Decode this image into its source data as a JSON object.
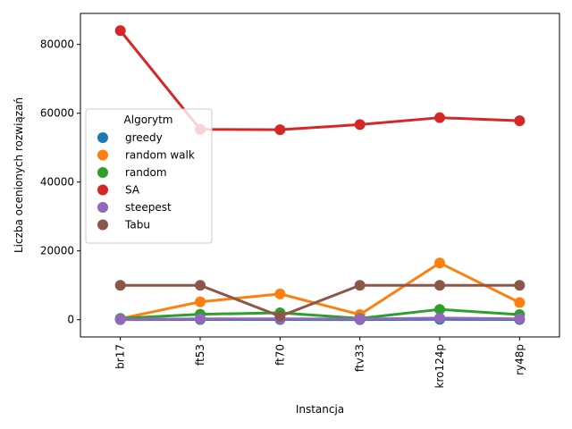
{
  "chart_data": {
    "type": "line",
    "xlabel": "Instancja",
    "ylabel": "Liczba ocenionych rozwiązań",
    "categories": [
      "br17",
      "ft53",
      "ft70",
      "ftv33",
      "kro124p",
      "ry48p"
    ],
    "ylim": [
      -5000,
      89000
    ],
    "yticks": [
      0,
      20000,
      40000,
      60000,
      80000
    ],
    "grid": false,
    "legend": {
      "title": "Algorytm",
      "placement": "center-left"
    },
    "series": [
      {
        "name": "greedy",
        "color": "#1f77b4",
        "values": [
          17,
          53,
          70,
          33,
          124,
          48
        ]
      },
      {
        "name": "random walk",
        "color": "#ff7f0e",
        "values": [
          300,
          5200,
          7500,
          1500,
          16500,
          5000
        ]
      },
      {
        "name": "random",
        "color": "#2ca02c",
        "values": [
          400,
          1600,
          2000,
          400,
          3000,
          1500
        ]
      },
      {
        "name": "SA",
        "color": "#d62728",
        "values": [
          84000,
          55300,
          55200,
          56700,
          58700,
          57800
        ]
      },
      {
        "name": "steepest",
        "color": "#9467bd",
        "values": [
          100,
          250,
          250,
          200,
          500,
          250
        ]
      },
      {
        "name": "Tabu",
        "color": "#8c564b",
        "values": [
          10000,
          10000,
          1000,
          10000,
          10000,
          10000
        ]
      }
    ]
  }
}
